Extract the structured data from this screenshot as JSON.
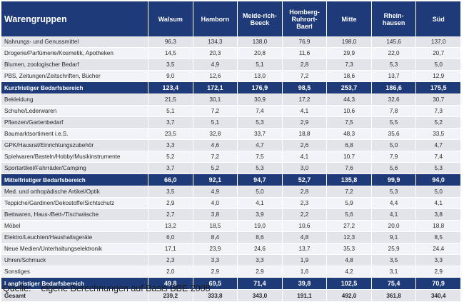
{
  "table": {
    "headers": [
      "Warengruppen",
      "Walsum",
      "Hamborn",
      "Meide-rich-Beeck",
      "Homberg-Ruhrort-Baerl",
      "Mitte",
      "Rhein-hausen",
      "Süd"
    ],
    "rows": [
      {
        "type": "row",
        "cells": [
          "Nahrungs- und Genussmittel",
          "96,3",
          "134,3",
          "138,0",
          "76,9",
          "198,0",
          "145,6",
          "137,0"
        ]
      },
      {
        "type": "row",
        "cells": [
          "Drogerie/Parfümerie/Kosmetik, Apotheken",
          "14,5",
          "20,3",
          "20,8",
          "11,6",
          "29,9",
          "22,0",
          "20,7"
        ]
      },
      {
        "type": "row",
        "cells": [
          "Blumen, zoologischer Bedarf",
          "3,5",
          "4,9",
          "5,1",
          "2,8",
          "7,3",
          "5,3",
          "5,0"
        ]
      },
      {
        "type": "row",
        "cells": [
          "PBS, Zeitungen/Zeitschriften, Bücher",
          "9,0",
          "12,6",
          "13,0",
          "7,2",
          "18,6",
          "13,7",
          "12,9"
        ]
      },
      {
        "type": "subtotal",
        "cells": [
          "Kurzfristiger Bedarfsbereich",
          "123,4",
          "172,1",
          "176,9",
          "98,5",
          "253,7",
          "186,6",
          "175,5"
        ]
      },
      {
        "type": "row",
        "cells": [
          "Bekleidung",
          "21,5",
          "30,1",
          "30,9",
          "17,2",
          "44,3",
          "32,6",
          "30,7"
        ]
      },
      {
        "type": "row",
        "cells": [
          "Schuhe/Lederwaren",
          "5,1",
          "7,2",
          "7,4",
          "4,1",
          "10,6",
          "7,8",
          "7,3"
        ]
      },
      {
        "type": "row",
        "cells": [
          "Pflanzen/Gartenbedarf",
          "3,7",
          "5,1",
          "5,3",
          "2,9",
          "7,5",
          "5,5",
          "5,2"
        ]
      },
      {
        "type": "row",
        "cells": [
          "Baumarktsortiment i.e.S.",
          "23,5",
          "32,8",
          "33,7",
          "18,8",
          "48,3",
          "35,6",
          "33,5"
        ]
      },
      {
        "type": "row",
        "cells": [
          "GPK/Hausrat/Einrichtungszubehör",
          "3,3",
          "4,6",
          "4,7",
          "2,6",
          "6,8",
          "5,0",
          "4,7"
        ]
      },
      {
        "type": "row",
        "cells": [
          "Spielwaren/Basteln/Hobby/Musikinstrumente",
          "5,2",
          "7,2",
          "7,5",
          "4,1",
          "10,7",
          "7,9",
          "7,4"
        ]
      },
      {
        "type": "row",
        "cells": [
          "Sportartikel/Fahrräder/Camping",
          "3,7",
          "5,2",
          "5,3",
          "3,0",
          "7,6",
          "5,6",
          "5,3"
        ]
      },
      {
        "type": "subtotal",
        "cells": [
          "Mittelfristiger Bedarfsbereich",
          "66,0",
          "92,1",
          "94,7",
          "52,7",
          "135,8",
          "99,9",
          "94,0"
        ]
      },
      {
        "type": "row",
        "cells": [
          "Med. und orthopädische Artikel/Optik",
          "3,5",
          "4,9",
          "5,0",
          "2,8",
          "7,2",
          "5,3",
          "5,0"
        ]
      },
      {
        "type": "row",
        "cells": [
          "Teppiche/Gardinen/Dekostoffe/Sichtschutz",
          "2,9",
          "4,0",
          "4,1",
          "2,3",
          "5,9",
          "4,4",
          "4,1"
        ]
      },
      {
        "type": "row",
        "cells": [
          "Bettwaren, Haus-/Bett-/Tischwäsche",
          "2,7",
          "3,8",
          "3,9",
          "2,2",
          "5,6",
          "4,1",
          "3,8"
        ]
      },
      {
        "type": "row",
        "cells": [
          "Möbel",
          "13,2",
          "18,5",
          "19,0",
          "10,6",
          "27,2",
          "20,0",
          "18,8"
        ]
      },
      {
        "type": "row",
        "cells": [
          "Elektro/Leuchten/Haushaltsgeräte",
          "6,0",
          "8,4",
          "8,6",
          "4,8",
          "12,3",
          "9,1",
          "8,5"
        ]
      },
      {
        "type": "row",
        "cells": [
          "Neue Medien/Unterhaltungselektronik",
          "17,1",
          "23,9",
          "24,6",
          "13,7",
          "35,3",
          "25,9",
          "24,4"
        ]
      },
      {
        "type": "row",
        "cells": [
          "Uhren/Schmuck",
          "2,3",
          "3,3",
          "3,3",
          "1,9",
          "4,8",
          "3,5",
          "3,3"
        ]
      },
      {
        "type": "row",
        "cells": [
          "Sonstiges",
          "2,0",
          "2,9",
          "2,9",
          "1,6",
          "4,2",
          "3,1",
          "2,9"
        ]
      },
      {
        "type": "subtotal",
        "cells": [
          "Langfristiger Bedarfsbereich",
          "49,8",
          "69,5",
          "71,4",
          "39,8",
          "102,5",
          "75,4",
          "70,9"
        ]
      },
      {
        "type": "total",
        "cells": [
          "Gesamt",
          "239,2",
          "333,8",
          "343,0",
          "191,1",
          "492,0",
          "361,8",
          "340,4"
        ]
      }
    ]
  },
  "source": {
    "label": "Quelle:",
    "text": "eigene Berechnungen auf Basis BBE 2008"
  }
}
